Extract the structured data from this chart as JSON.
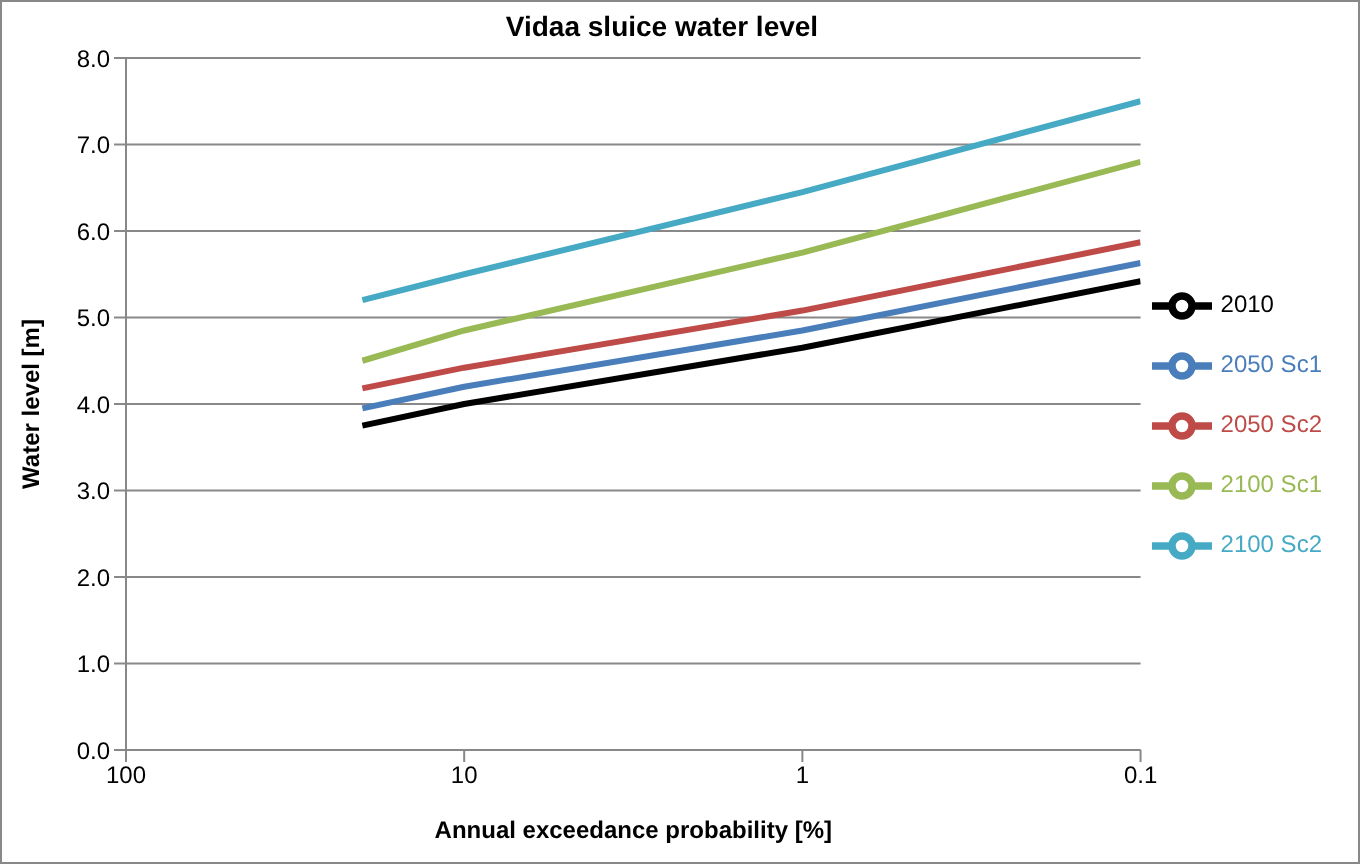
{
  "chart_data": {
    "type": "line",
    "title": "Vidaa sluice water level",
    "xlabel": "Annual exceedance probability [%]",
    "ylabel": "Water level [m]",
    "x": [
      20,
      10,
      1,
      0.1
    ],
    "series": [
      {
        "name": "2010",
        "color": "#000000",
        "values": [
          3.75,
          4.0,
          4.65,
          5.42
        ]
      },
      {
        "name": "2050 Sc1",
        "color": "#4a7ebb",
        "values": [
          3.95,
          4.2,
          4.85,
          5.63
        ]
      },
      {
        "name": "2050 Sc2",
        "color": "#be4b48",
        "values": [
          4.18,
          4.42,
          5.08,
          5.87
        ]
      },
      {
        "name": "2100 Sc1",
        "color": "#98b954",
        "values": [
          4.5,
          4.85,
          5.75,
          6.8
        ]
      },
      {
        "name": "2100 Sc2",
        "color": "#46aac5",
        "values": [
          5.2,
          5.5,
          6.45,
          7.5
        ]
      }
    ],
    "log": "x",
    "xlim": [
      100,
      0.1
    ],
    "xticks": [
      100,
      10,
      1,
      0.1
    ],
    "ylim": [
      0,
      8
    ],
    "yticks": [
      {
        "value": 0,
        "label": "0.0"
      },
      {
        "value": 1,
        "label": "1.0"
      },
      {
        "value": 2,
        "label": "2.0"
      },
      {
        "value": 3,
        "label": "3.0"
      },
      {
        "value": 4,
        "label": "4.0"
      },
      {
        "value": 5,
        "label": "5.0"
      },
      {
        "value": 6,
        "label": "6.0"
      },
      {
        "value": 7,
        "label": "7.0"
      },
      {
        "value": 8,
        "label": "8.0"
      }
    ],
    "grid": "y",
    "legend": "right",
    "marker": "none",
    "line_style": "solid"
  }
}
